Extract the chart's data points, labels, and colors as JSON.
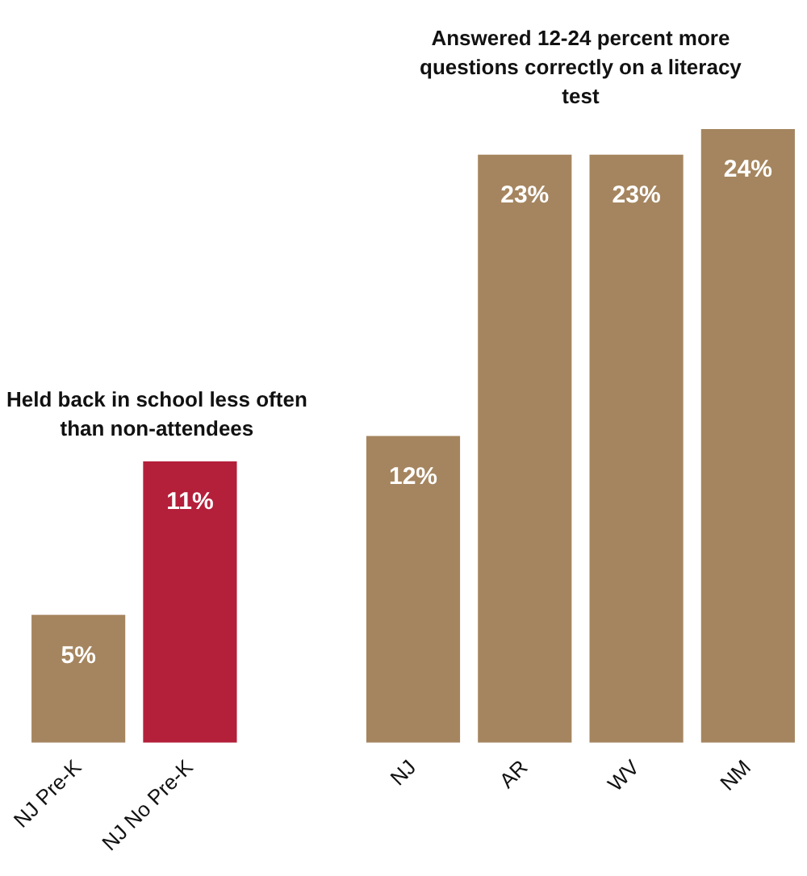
{
  "chart_data": {
    "type": "bar",
    "categories": [
      "NJ Pre-K",
      "NJ No Pre-K",
      null,
      "NJ",
      "AR",
      "WV",
      "NM"
    ],
    "values": [
      5,
      11,
      null,
      12,
      23,
      23,
      24
    ],
    "colors": [
      "#a5855f",
      "#b41f3a",
      "#a5855f",
      "#a5855f",
      "#a5855f",
      "#a5855f",
      "#a5855f"
    ],
    "value_labels": [
      "5%",
      "11%",
      null,
      "12%",
      "23%",
      "23%",
      "24%"
    ],
    "annotations": [
      "Held back in school less often than non-attendees",
      "Answered 12-24 percent more questions correctly on a literacy test"
    ],
    "grid": false,
    "legend": false
  }
}
